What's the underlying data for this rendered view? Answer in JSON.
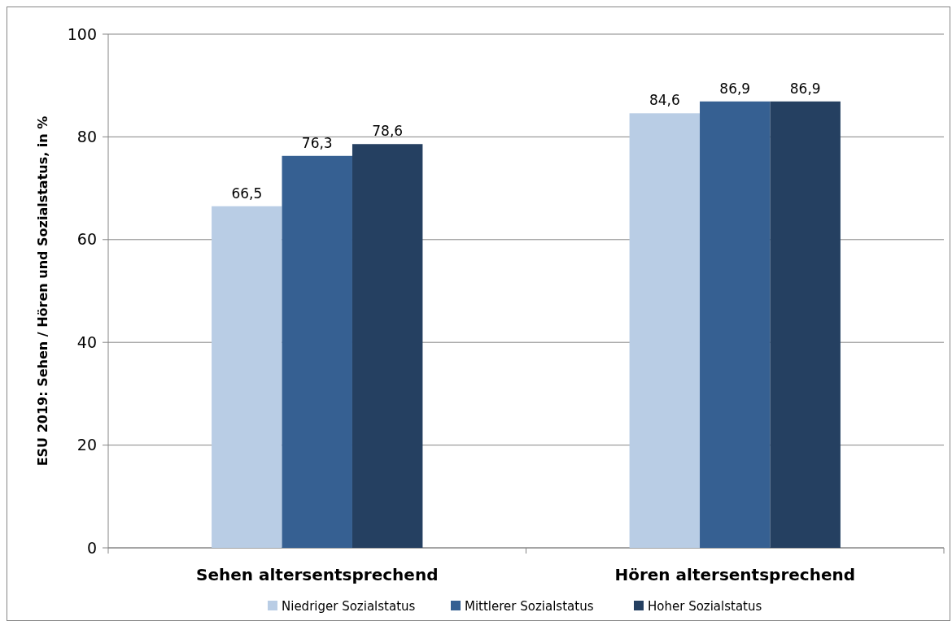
{
  "chart_data": {
    "type": "bar",
    "ylabel": "ESU 2019: Sehen  / Hören und Sozialstatus, in %",
    "categories": [
      "Sehen altersentsprechend",
      "Hören altersentsprechend"
    ],
    "series": [
      {
        "name": "Niedriger Sozialstatus",
        "color": "#b9cde5",
        "values": [
          66.5,
          84.6
        ],
        "value_labels": [
          "66,5",
          "84,6"
        ]
      },
      {
        "name": "Mittlerer Sozialstatus",
        "color": "#366092",
        "values": [
          76.3,
          86.9
        ],
        "value_labels": [
          "76,3",
          "86,9"
        ]
      },
      {
        "name": "Hoher Sozialstatus",
        "color": "#254061",
        "values": [
          78.6,
          86.9
        ],
        "value_labels": [
          "78,6",
          "86,9"
        ]
      }
    ],
    "ylim": [
      0,
      100
    ],
    "yticks": [
      0,
      20,
      40,
      60,
      80,
      100
    ],
    "grid": "y",
    "legend": "bottom"
  }
}
